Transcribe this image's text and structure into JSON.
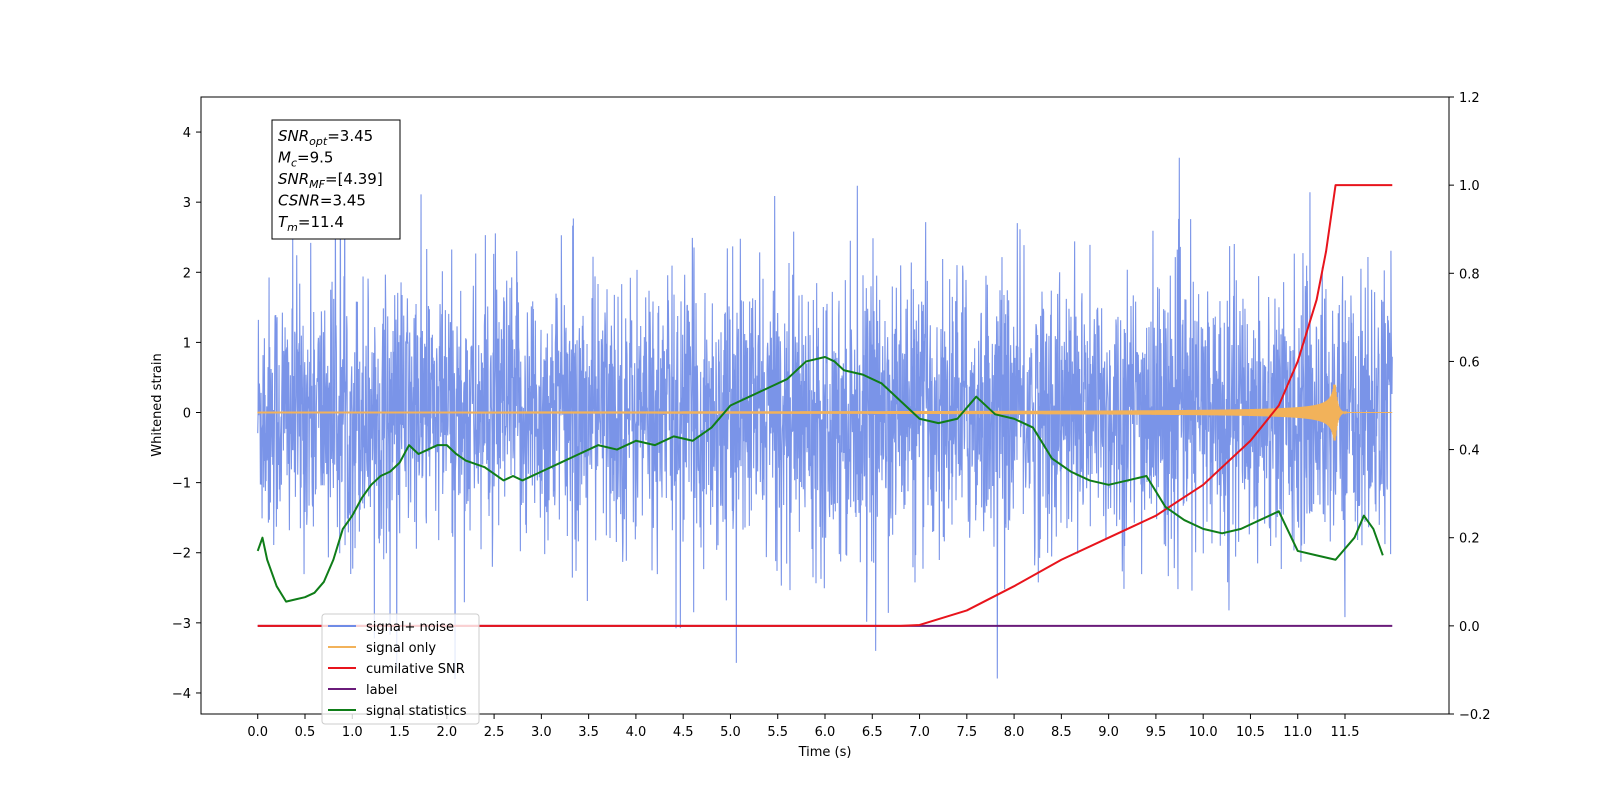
{
  "chart_data": {
    "type": "line",
    "xlabel": "Time (s)",
    "ylabel_left": "Whitened strain",
    "xlim": [
      -0.6,
      12.6
    ],
    "ylim_left": [
      -4.3,
      4.5
    ],
    "ylim_right": [
      -0.2,
      1.2
    ],
    "x_ticks": [
      0.0,
      0.5,
      1.0,
      1.5,
      2.0,
      2.5,
      3.0,
      3.5,
      4.0,
      4.5,
      5.0,
      5.5,
      6.0,
      6.5,
      7.0,
      7.5,
      8.0,
      8.5,
      9.0,
      9.5,
      10.0,
      10.5,
      11.0,
      11.5
    ],
    "x_tick_labels": [
      "0.0",
      "0.5",
      "1.0",
      "1.5",
      "2.0",
      "2.5",
      "3.0",
      "3.5",
      "4.0",
      "4.5",
      "5.0",
      "5.5",
      "6.0",
      "6.5",
      "7.0",
      "7.5",
      "8.0",
      "8.5",
      "9.0",
      "9.5",
      "10.0",
      "10.5",
      "11.0",
      "11.5"
    ],
    "y_left_ticks": [
      -4,
      -3,
      -2,
      -1,
      0,
      1,
      2,
      3,
      4
    ],
    "y_left_tick_labels": [
      "−4",
      "−3",
      "−2",
      "−1",
      "0",
      "1",
      "2",
      "3",
      "4"
    ],
    "y_right_ticks": [
      -0.2,
      0.0,
      0.2,
      0.4,
      0.6,
      0.8,
      1.0,
      1.2
    ],
    "y_right_tick_labels": [
      "−0.2",
      "0.0",
      "0.2",
      "0.4",
      "0.6",
      "0.8",
      "1.0",
      "1.2"
    ],
    "grid": false,
    "legend_position": "lower-left",
    "annotation": [
      {
        "base": "SNR",
        "sub": "opt",
        "value": "=3.45"
      },
      {
        "base": "M",
        "sub": "c",
        "value": "=9.5"
      },
      {
        "base": "SNR",
        "sub": "MF",
        "value": "=[4.39]"
      },
      {
        "base": "CSNR",
        "sub": "",
        "value": "=3.45"
      },
      {
        "base": "T",
        "sub": "m",
        "value": "=11.4"
      }
    ],
    "series": [
      {
        "name": "signal+ noise",
        "color": "#6f8be6",
        "axis": "left",
        "style": "dense-noise",
        "x_range": [
          0.0,
          12.0
        ],
        "band": [
          -1.6,
          1.6
        ],
        "extremes": [
          -3.8,
          4.1
        ]
      },
      {
        "name": "signal only",
        "color": "#f2b25a",
        "axis": "left",
        "style": "chirp",
        "x_range": [
          0.0,
          12.0
        ],
        "merger_time": 11.4,
        "peak_amplitude": 0.4
      },
      {
        "name": "cumilative SNR",
        "color": "#e8141c",
        "axis": "right",
        "x": [
          0.0,
          6.8,
          7.0,
          7.5,
          8.0,
          8.5,
          9.0,
          9.5,
          10.0,
          10.5,
          10.8,
          11.0,
          11.2,
          11.3,
          11.4,
          11.5,
          12.0
        ],
        "values": [
          0.0,
          0.0,
          0.002,
          0.035,
          0.09,
          0.15,
          0.2,
          0.25,
          0.32,
          0.42,
          0.5,
          0.6,
          0.74,
          0.85,
          1.0,
          1.0,
          1.0
        ]
      },
      {
        "name": "label",
        "color": "#6a1b7a",
        "axis": "right",
        "x": [
          0.0,
          12.0
        ],
        "values": [
          0.0,
          0.0
        ]
      },
      {
        "name": "signal statistics",
        "color": "#0f7d18",
        "axis": "right",
        "x": [
          0.0,
          0.05,
          0.1,
          0.2,
          0.3,
          0.4,
          0.5,
          0.6,
          0.7,
          0.8,
          0.9,
          1.0,
          1.1,
          1.2,
          1.3,
          1.4,
          1.5,
          1.6,
          1.7,
          1.8,
          1.9,
          2.0,
          2.1,
          2.2,
          2.4,
          2.6,
          2.7,
          2.8,
          3.0,
          3.2,
          3.4,
          3.6,
          3.8,
          4.0,
          4.2,
          4.4,
          4.6,
          4.8,
          5.0,
          5.2,
          5.4,
          5.6,
          5.8,
          6.0,
          6.1,
          6.2,
          6.4,
          6.6,
          6.8,
          7.0,
          7.2,
          7.4,
          7.6,
          7.8,
          8.0,
          8.2,
          8.4,
          8.6,
          8.8,
          9.0,
          9.2,
          9.4,
          9.6,
          9.8,
          10.0,
          10.2,
          10.4,
          10.6,
          10.8,
          11.0,
          11.2,
          11.4,
          11.6,
          11.7,
          11.8,
          11.9
        ],
        "values": [
          0.17,
          0.2,
          0.15,
          0.09,
          0.055,
          0.06,
          0.065,
          0.075,
          0.1,
          0.15,
          0.22,
          0.25,
          0.29,
          0.32,
          0.34,
          0.35,
          0.37,
          0.41,
          0.39,
          0.4,
          0.41,
          0.41,
          0.39,
          0.375,
          0.36,
          0.33,
          0.34,
          0.33,
          0.35,
          0.37,
          0.39,
          0.41,
          0.4,
          0.42,
          0.41,
          0.43,
          0.42,
          0.45,
          0.5,
          0.52,
          0.54,
          0.56,
          0.6,
          0.61,
          0.6,
          0.58,
          0.57,
          0.55,
          0.51,
          0.47,
          0.46,
          0.47,
          0.52,
          0.48,
          0.47,
          0.45,
          0.38,
          0.35,
          0.33,
          0.32,
          0.33,
          0.34,
          0.27,
          0.24,
          0.22,
          0.21,
          0.22,
          0.24,
          0.26,
          0.17,
          0.16,
          0.15,
          0.2,
          0.25,
          0.22,
          0.16
        ]
      }
    ]
  }
}
